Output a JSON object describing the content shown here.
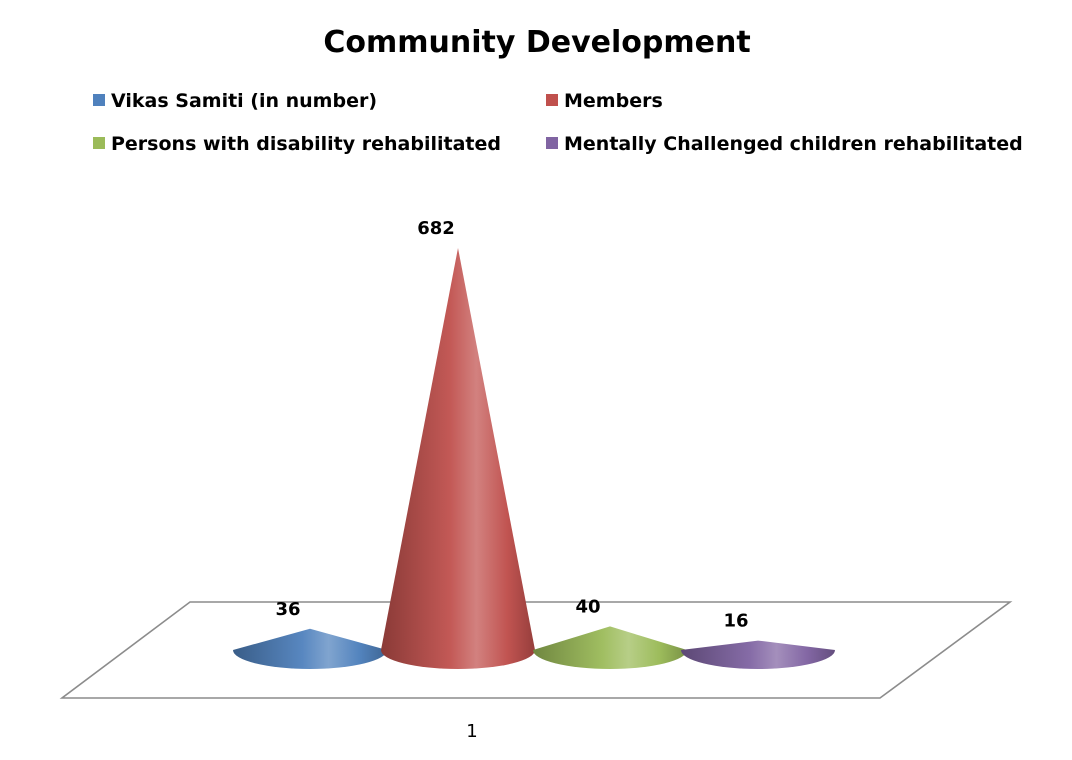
{
  "chart_data": {
    "type": "bar",
    "subtype": "3d-cone",
    "title": "Community Development",
    "categories": [
      "1"
    ],
    "series": [
      {
        "name": "Vikas Samiti (in number)",
        "values": [
          36
        ],
        "color": "#4F81BD"
      },
      {
        "name": "Members",
        "values": [
          682
        ],
        "color": "#C0504D"
      },
      {
        "name": "Persons with disability rehabilitated",
        "values": [
          40
        ],
        "color": "#9BBB59"
      },
      {
        "name": "Mentally Challenged children rehabilitated",
        "values": [
          16
        ],
        "color": "#8064A2"
      }
    ],
    "xlabel": "",
    "ylabel": "",
    "ylim": [
      0,
      682
    ],
    "grid": false,
    "legend": "top"
  }
}
